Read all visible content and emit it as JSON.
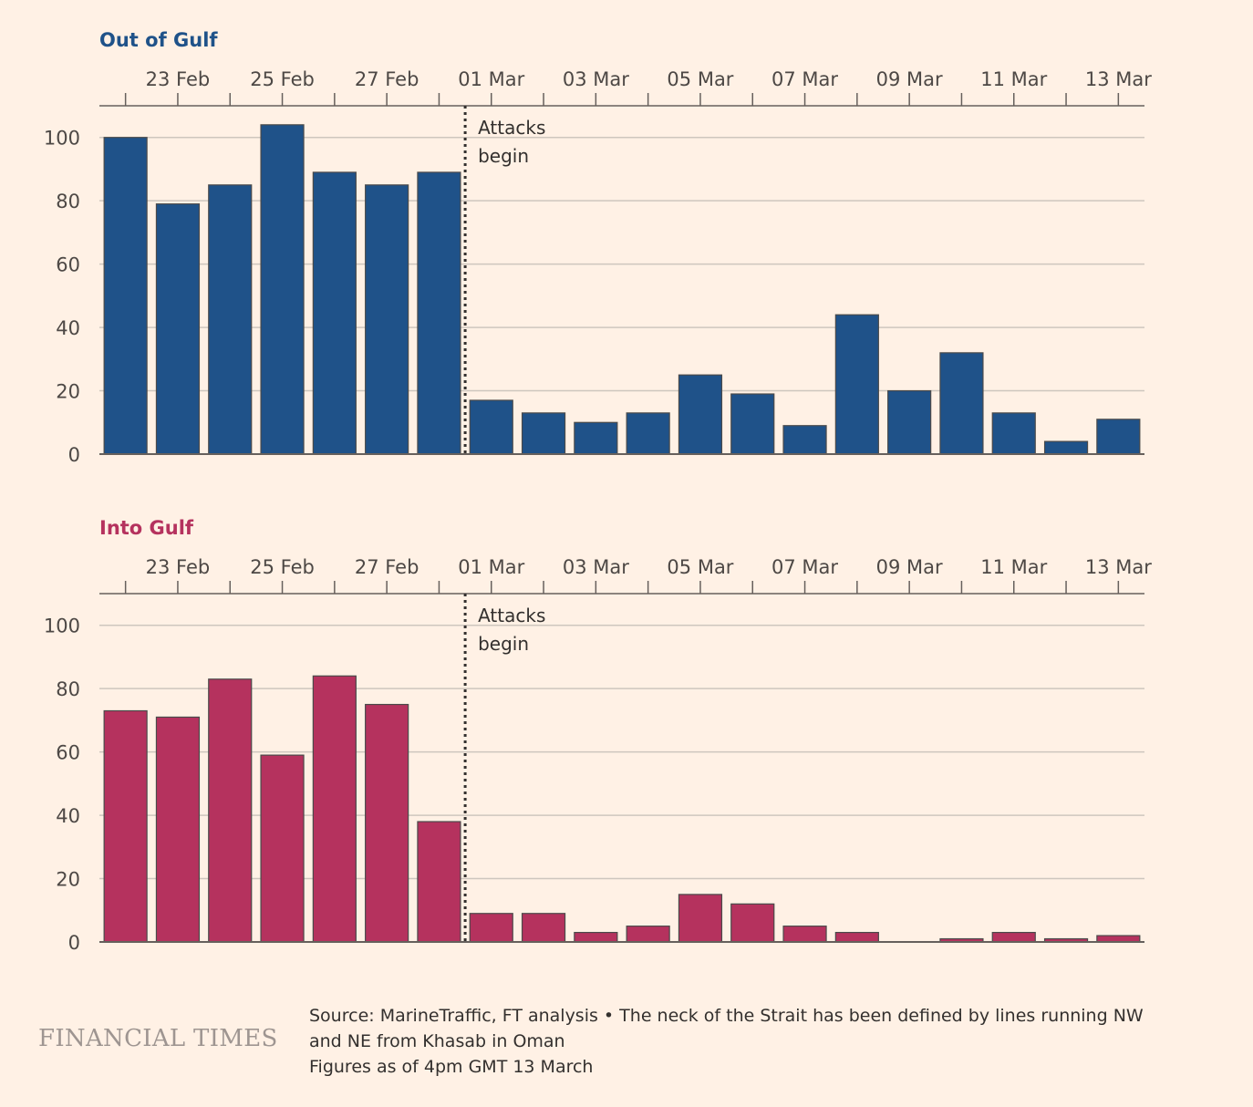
{
  "chart_data": [
    {
      "type": "bar",
      "title": "Out of Gulf",
      "color": "#1f5289",
      "title_color": "#1f5289",
      "dates": [
        "22 Feb",
        "23 Feb",
        "24 Feb",
        "25 Feb",
        "26 Feb",
        "27 Feb",
        "28 Feb",
        "01 Mar",
        "02 Mar",
        "03 Mar",
        "04 Mar",
        "05 Mar",
        "06 Mar",
        "07 Mar",
        "08 Mar",
        "09 Mar",
        "10 Mar",
        "11 Mar",
        "12 Mar",
        "13 Mar"
      ],
      "values": [
        100,
        79,
        85,
        104,
        89,
        85,
        89,
        17,
        13,
        10,
        13,
        25,
        19,
        9,
        44,
        20,
        32,
        13,
        4,
        11
      ],
      "x_tick_labels": [
        "23 Feb",
        "25 Feb",
        "27 Feb",
        "01 Mar",
        "03 Mar",
        "05 Mar",
        "07 Mar",
        "09 Mar",
        "11 Mar",
        "13 Mar"
      ],
      "y_ticks": [
        0,
        20,
        40,
        60,
        80,
        100
      ],
      "ylim": [
        0,
        110
      ],
      "grid": true,
      "annotation": {
        "line1": "Attacks",
        "line2": "begin",
        "between": [
          "28 Feb",
          "01 Mar"
        ]
      }
    },
    {
      "type": "bar",
      "title": "Into Gulf",
      "color": "#b5325e",
      "title_color": "#b5325e",
      "dates": [
        "22 Feb",
        "23 Feb",
        "24 Feb",
        "25 Feb",
        "26 Feb",
        "27 Feb",
        "28 Feb",
        "01 Mar",
        "02 Mar",
        "03 Mar",
        "04 Mar",
        "05 Mar",
        "06 Mar",
        "07 Mar",
        "08 Mar",
        "09 Mar",
        "10 Mar",
        "11 Mar",
        "12 Mar",
        "13 Mar"
      ],
      "values": [
        73,
        71,
        83,
        59,
        84,
        75,
        38,
        9,
        9,
        3,
        5,
        15,
        12,
        5,
        3,
        0,
        1,
        3,
        1,
        2
      ],
      "x_tick_labels": [
        "23 Feb",
        "25 Feb",
        "27 Feb",
        "01 Mar",
        "03 Mar",
        "05 Mar",
        "07 Mar",
        "09 Mar",
        "11 Mar",
        "13 Mar"
      ],
      "y_ticks": [
        0,
        20,
        40,
        60,
        80,
        100
      ],
      "ylim": [
        0,
        110
      ],
      "grid": true,
      "annotation": {
        "line1": "Attacks",
        "line2": "begin",
        "between": [
          "28 Feb",
          "01 Mar"
        ]
      }
    }
  ],
  "footer": {
    "logo": "FINANCIAL TIMES",
    "source_line1": "Source: MarineTraffic, FT analysis • The neck of the Strait has been defined by lines running NW",
    "source_line2": "and NE from Khasab in Oman",
    "source_line3": "Figures as of 4pm GMT 13 March"
  }
}
